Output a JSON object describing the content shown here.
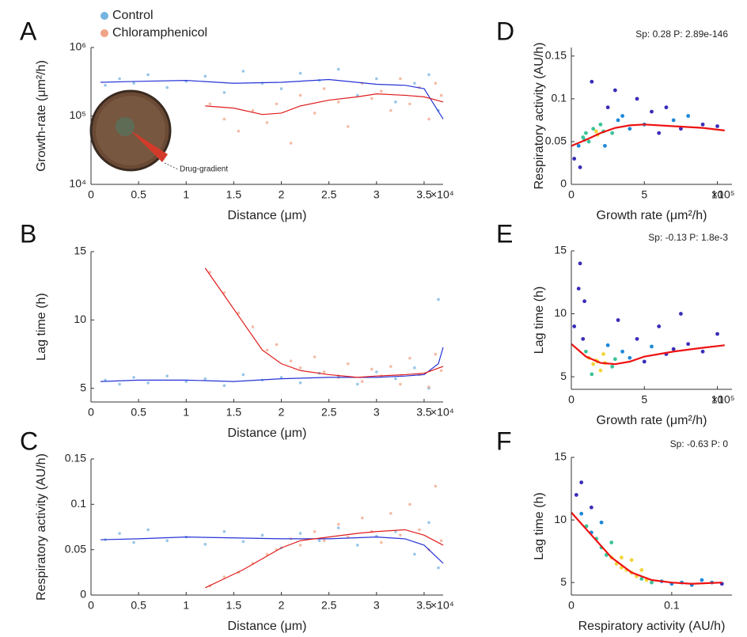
{
  "chart_data": [
    {
      "type": "scatter",
      "panel_label": "A",
      "x_label": "Distance (μm)",
      "y_label": "Growth-rate (μm²/h)",
      "y_scale": "log",
      "xlim": [
        0,
        37000
      ],
      "ylim": [
        10000,
        1000000
      ],
      "xticks": [
        0,
        {
          "value": 5000,
          "label": "0.5"
        },
        {
          "value": 10000,
          "label": "1"
        },
        {
          "value": 15000,
          "label": "1.5"
        },
        {
          "value": 20000,
          "label": "2"
        },
        {
          "value": 25000,
          "label": "2.5"
        },
        {
          "value": 30000,
          "label": "3"
        },
        {
          "value": 35000,
          "label": "3.5"
        }
      ],
      "x_multiplier": "×10⁴",
      "yticks": [
        {
          "value": 10000,
          "label": "10⁴"
        },
        {
          "value": 100000,
          "label": "10⁵"
        },
        {
          "value": 1000000,
          "label": "10⁶"
        }
      ],
      "legend": "top-left",
      "annotation": "Drug-gradient",
      "series": [
        {
          "name": "Control",
          "color": "#74b3e0",
          "x": [
            1500,
            3000,
            4500,
            6000,
            8000,
            10000,
            12000,
            14000,
            16000,
            18000,
            20000,
            22000,
            24000,
            26000,
            28000,
            30000,
            32000,
            34000,
            35500,
            36500
          ],
          "values": [
            280000,
            350000,
            300000,
            400000,
            260000,
            320000,
            380000,
            220000,
            450000,
            300000,
            250000,
            420000,
            330000,
            480000,
            200000,
            350000,
            160000,
            300000,
            400000,
            120000
          ]
        },
        {
          "name": "Chloramphenicol",
          "color": "#f0a487",
          "x": [
            12500,
            14000,
            15500,
            17000,
            18500,
            19500,
            21000,
            22000,
            23500,
            24500,
            26000,
            27000,
            28500,
            29500,
            30500,
            31500,
            32500,
            33500,
            34500,
            35500,
            36200,
            36800
          ],
          "values": [
            150000,
            90000,
            60000,
            120000,
            80000,
            150000,
            40000,
            200000,
            110000,
            250000,
            160000,
            70000,
            300000,
            180000,
            230000,
            120000,
            350000,
            150000,
            260000,
            90000,
            300000,
            200000
          ]
        }
      ],
      "fit_lines": [
        {
          "color": "#2633d6",
          "x": [
            1000,
            5000,
            10000,
            15000,
            20000,
            25000,
            30000,
            33000,
            35000,
            37000
          ],
          "values": [
            310000,
            320000,
            330000,
            300000,
            310000,
            340000,
            290000,
            280000,
            250000,
            90000
          ]
        },
        {
          "color": "#e01b1b",
          "x": [
            12000,
            15000,
            18000,
            20000,
            22000,
            25000,
            28000,
            30000,
            33000,
            35000,
            37000
          ],
          "values": [
            140000,
            130000,
            105000,
            110000,
            140000,
            170000,
            190000,
            210000,
            200000,
            190000,
            160000
          ]
        }
      ]
    },
    {
      "type": "scatter",
      "panel_label": "B",
      "x_label": "Distance (μm)",
      "y_label": "Lag time (h)",
      "xlim": [
        0,
        37000
      ],
      "ylim": [
        4,
        15
      ],
      "xticks": [
        0,
        {
          "value": 5000,
          "label": "0.5"
        },
        {
          "value": 10000,
          "label": "1"
        },
        {
          "value": 15000,
          "label": "1.5"
        },
        {
          "value": 20000,
          "label": "2"
        },
        {
          "value": 25000,
          "label": "2.5"
        },
        {
          "value": 30000,
          "label": "3"
        },
        {
          "value": 35000,
          "label": "3.5"
        }
      ],
      "x_multiplier": "×10⁴",
      "yticks": [
        5,
        10,
        15
      ],
      "series": [
        {
          "color": "#74b3e0",
          "x": [
            1500,
            3000,
            4500,
            6000,
            8000,
            10000,
            12000,
            14000,
            16000,
            18000,
            20000,
            22000,
            24000,
            26000,
            28000,
            30000,
            32000,
            34000,
            35500,
            36500
          ],
          "values": [
            5.6,
            5.3,
            5.8,
            5.4,
            5.9,
            5.5,
            5.7,
            5.2,
            6.0,
            5.6,
            5.8,
            5.4,
            6.1,
            5.9,
            5.3,
            6.2,
            5.7,
            6.5,
            5.0,
            11.5
          ]
        },
        {
          "color": "#f0a487",
          "x": [
            12500,
            14000,
            15500,
            17000,
            18500,
            19500,
            21000,
            22000,
            23500,
            24500,
            26000,
            27000,
            28500,
            29500,
            30500,
            31500,
            32500,
            33500,
            34500,
            35500,
            36200,
            36800
          ],
          "values": [
            13.5,
            12.0,
            10.5,
            9.5,
            7.8,
            8.2,
            7.0,
            6.5,
            7.3,
            6.2,
            5.8,
            6.8,
            5.5,
            6.4,
            5.9,
            6.6,
            5.3,
            7.2,
            6.0,
            5.1,
            7.5,
            6.3
          ]
        }
      ],
      "fit_lines": [
        {
          "color": "#2633d6",
          "x": [
            1000,
            5000,
            10000,
            15000,
            20000,
            25000,
            30000,
            33000,
            35000,
            36500,
            37000
          ],
          "values": [
            5.5,
            5.6,
            5.6,
            5.5,
            5.7,
            5.8,
            5.8,
            5.9,
            6.0,
            6.8,
            8.0
          ]
        },
        {
          "color": "#e01b1b",
          "x": [
            12000,
            14000,
            16000,
            18000,
            20000,
            22000,
            25000,
            28000,
            30000,
            33000,
            35000,
            37000
          ],
          "values": [
            13.8,
            11.8,
            9.8,
            7.8,
            6.8,
            6.3,
            6.0,
            5.8,
            5.9,
            6.0,
            6.1,
            6.6
          ]
        }
      ]
    },
    {
      "type": "scatter",
      "panel_label": "C",
      "x_label": "Distance (μm)",
      "y_label": "Respiratory activity (AU/h)",
      "xlim": [
        0,
        37000
      ],
      "ylim": [
        0,
        0.15
      ],
      "xticks": [
        0,
        {
          "value": 5000,
          "label": "0.5"
        },
        {
          "value": 10000,
          "label": "1"
        },
        {
          "value": 15000,
          "label": "1.5"
        },
        {
          "value": 20000,
          "label": "2"
        },
        {
          "value": 25000,
          "label": "2.5"
        },
        {
          "value": 30000,
          "label": "3"
        },
        {
          "value": 35000,
          "label": "3.5"
        }
      ],
      "x_multiplier": "×10⁴",
      "yticks": [
        0,
        0.05,
        0.1,
        0.15
      ],
      "series": [
        {
          "color": "#74b3e0",
          "x": [
            1500,
            3000,
            4500,
            6000,
            8000,
            10000,
            12000,
            14000,
            16000,
            18000,
            20000,
            22000,
            24000,
            26000,
            28000,
            30000,
            32000,
            34000,
            35500,
            36500
          ],
          "values": [
            0.061,
            0.068,
            0.058,
            0.072,
            0.06,
            0.064,
            0.056,
            0.07,
            0.059,
            0.066,
            0.052,
            0.068,
            0.06,
            0.074,
            0.055,
            0.065,
            0.07,
            0.045,
            0.08,
            0.03
          ]
        },
        {
          "color": "#f0a487",
          "x": [
            12500,
            14000,
            15500,
            17000,
            18500,
            19500,
            21000,
            22000,
            23500,
            24500,
            26000,
            27000,
            28500,
            29500,
            30500,
            31500,
            32500,
            33500,
            34500,
            35500,
            36200,
            36800
          ],
          "values": [
            0.01,
            0.02,
            0.025,
            0.035,
            0.045,
            0.05,
            0.062,
            0.055,
            0.07,
            0.06,
            0.078,
            0.064,
            0.085,
            0.07,
            0.058,
            0.09,
            0.066,
            0.1,
            0.072,
            0.05,
            0.12,
            0.06
          ]
        }
      ],
      "fit_lines": [
        {
          "color": "#2633d6",
          "x": [
            1000,
            5000,
            10000,
            15000,
            20000,
            25000,
            30000,
            33000,
            35000,
            37000
          ],
          "values": [
            0.061,
            0.062,
            0.064,
            0.063,
            0.062,
            0.062,
            0.064,
            0.062,
            0.055,
            0.035
          ]
        },
        {
          "color": "#e01b1b",
          "x": [
            12000,
            14000,
            16000,
            18000,
            20000,
            22000,
            25000,
            28000,
            30000,
            33000,
            35000,
            37000
          ],
          "values": [
            0.008,
            0.018,
            0.028,
            0.04,
            0.052,
            0.06,
            0.064,
            0.068,
            0.07,
            0.072,
            0.066,
            0.055
          ]
        }
      ]
    },
    {
      "type": "density",
      "panel_label": "D",
      "x_label": "Growth rate (μm²/h)",
      "y_label": "Respiratory activity (AU/h)",
      "annotation": "Sp: 0.28 P: 2.89e-146",
      "xlim": [
        0,
        1100000
      ],
      "ylim": [
        0,
        0.16
      ],
      "xticks": [
        0,
        {
          "value": 500000,
          "label": "5"
        },
        {
          "value": 1000000,
          "label": "10"
        }
      ],
      "x_multiplier": "×10⁵",
      "yticks": [
        0,
        0.05,
        0.1,
        0.15
      ],
      "colormap": [
        "#3a2db8",
        "#1e88d8",
        "#3cc39a",
        "#f2d53c"
      ],
      "series": [
        {
          "x": [
            20000,
            50000,
            80000,
            100000,
            120000,
            150000,
            180000,
            200000,
            220000,
            250000,
            280000,
            300000,
            320000,
            350000,
            400000,
            450000,
            500000,
            550000,
            600000,
            650000,
            700000,
            750000,
            800000,
            900000,
            1000000,
            60000,
            140000,
            230000,
            170000,
            90000
          ],
          "values": [
            0.03,
            0.045,
            0.055,
            0.06,
            0.05,
            0.065,
            0.058,
            0.07,
            0.062,
            0.09,
            0.06,
            0.11,
            0.075,
            0.08,
            0.065,
            0.1,
            0.07,
            0.085,
            0.06,
            0.09,
            0.075,
            0.065,
            0.08,
            0.07,
            0.068,
            0.02,
            0.12,
            0.045,
            0.062,
            0.052
          ]
        }
      ],
      "fit_lines": [
        {
          "color": "#ee1111",
          "x": [
            0,
            100000,
            200000,
            300000,
            400000,
            500000,
            700000,
            900000,
            1050000
          ],
          "values": [
            0.045,
            0.052,
            0.06,
            0.066,
            0.069,
            0.07,
            0.068,
            0.066,
            0.063
          ]
        }
      ]
    },
    {
      "type": "density",
      "panel_label": "E",
      "x_label": "Growth rate (μm²/h)",
      "y_label": "Lag time (h)",
      "annotation": "Sp: -0.13 P: 1.8e-3",
      "xlim": [
        0,
        1100000
      ],
      "ylim": [
        4,
        15
      ],
      "xticks": [
        0,
        {
          "value": 500000,
          "label": "5"
        },
        {
          "value": 1000000,
          "label": "10"
        }
      ],
      "x_multiplier": "×10⁵",
      "yticks": [
        5,
        10,
        15
      ],
      "colormap": [
        "#3a2db8",
        "#1e88d8",
        "#3cc39a",
        "#f2d53c"
      ],
      "series": [
        {
          "x": [
            20000,
            50000,
            80000,
            100000,
            120000,
            150000,
            180000,
            200000,
            220000,
            250000,
            280000,
            300000,
            320000,
            350000,
            400000,
            450000,
            500000,
            550000,
            600000,
            650000,
            700000,
            750000,
            800000,
            900000,
            1000000,
            60000,
            140000,
            230000,
            170000,
            90000
          ],
          "values": [
            9,
            12,
            8,
            7,
            6.5,
            6,
            6.2,
            5.5,
            6.8,
            7.5,
            5.8,
            6.4,
            9.5,
            7,
            6.5,
            8,
            6.2,
            7.4,
            9,
            6.8,
            7.2,
            10,
            7.6,
            7,
            8.4,
            14,
            5.2,
            6.1,
            6.3,
            11
          ]
        }
      ],
      "fit_lines": [
        {
          "color": "#ee1111",
          "x": [
            0,
            100000,
            200000,
            300000,
            400000,
            500000,
            700000,
            900000,
            1050000
          ],
          "values": [
            7.6,
            6.6,
            6.1,
            6.0,
            6.2,
            6.6,
            7.0,
            7.3,
            7.5
          ]
        }
      ]
    },
    {
      "type": "density",
      "panel_label": "F",
      "x_label": "Respiratory activity (AU/h)",
      "y_label": "Lag time (h)",
      "annotation": "Sp: -0.63 P: 0",
      "xlim": [
        0,
        0.16
      ],
      "ylim": [
        4,
        15
      ],
      "xticks": [
        0,
        0.1
      ],
      "yticks": [
        5,
        10,
        15
      ],
      "colormap": [
        "#3a2db8",
        "#1e88d8",
        "#3cc39a",
        "#f2d53c"
      ],
      "series": [
        {
          "x": [
            0.005,
            0.01,
            0.015,
            0.02,
            0.025,
            0.03,
            0.035,
            0.04,
            0.045,
            0.05,
            0.055,
            0.06,
            0.065,
            0.07,
            0.075,
            0.08,
            0.09,
            0.1,
            0.11,
            0.12,
            0.13,
            0.14,
            0.15,
            0.01,
            0.03,
            0.05,
            0.06,
            0.04,
            0.02,
            0.07
          ],
          "values": [
            12,
            10.5,
            9.5,
            9,
            8.5,
            7.8,
            7.2,
            7,
            6.5,
            6.2,
            6,
            5.8,
            5.5,
            5.3,
            5.2,
            5,
            5.1,
            4.9,
            5,
            4.8,
            5.2,
            5,
            4.9,
            13,
            9.8,
            7,
            6.8,
            8.2,
            11,
            6
          ]
        }
      ],
      "fit_lines": [
        {
          "color": "#ee1111",
          "x": [
            0,
            0.02,
            0.04,
            0.06,
            0.08,
            0.1,
            0.12,
            0.15
          ],
          "values": [
            10.6,
            8.8,
            7,
            5.8,
            5.2,
            5,
            4.9,
            5
          ]
        }
      ]
    }
  ]
}
